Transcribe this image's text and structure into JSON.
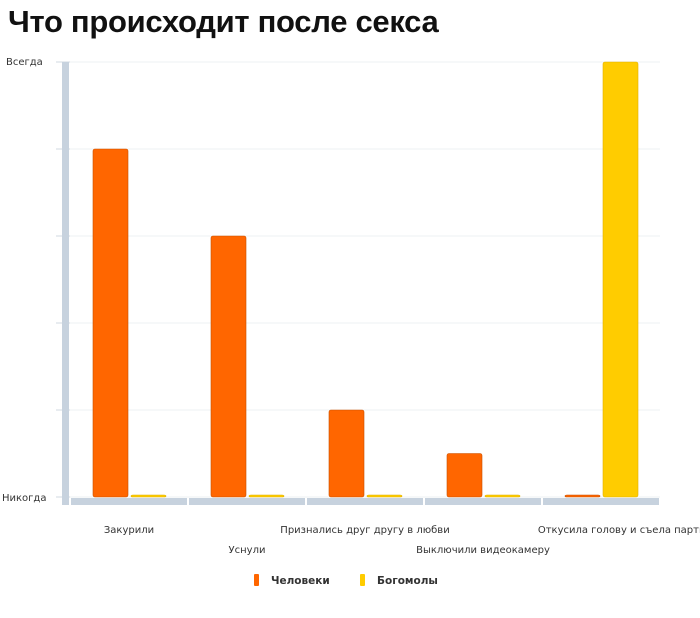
{
  "chart_data": {
    "type": "bar",
    "title": "Что происходит после секса",
    "categories": [
      "Закурили",
      "Уснули",
      "Признались друг другу в любви",
      "Выключили видеокамеру",
      "Откусила голову и съела партнера"
    ],
    "series": [
      {
        "name": "Человеки",
        "color": "#ff6600",
        "values": [
          80,
          60,
          20,
          10,
          0
        ]
      },
      {
        "name": "Богомолы",
        "color": "#ffcc00",
        "values": [
          0,
          0,
          0,
          0,
          100
        ]
      }
    ],
    "y_tick_labels": {
      "min": "Никогда",
      "max": "Всегда"
    },
    "ylim": [
      0,
      100
    ],
    "grid": true,
    "legend_position": "bottom"
  }
}
